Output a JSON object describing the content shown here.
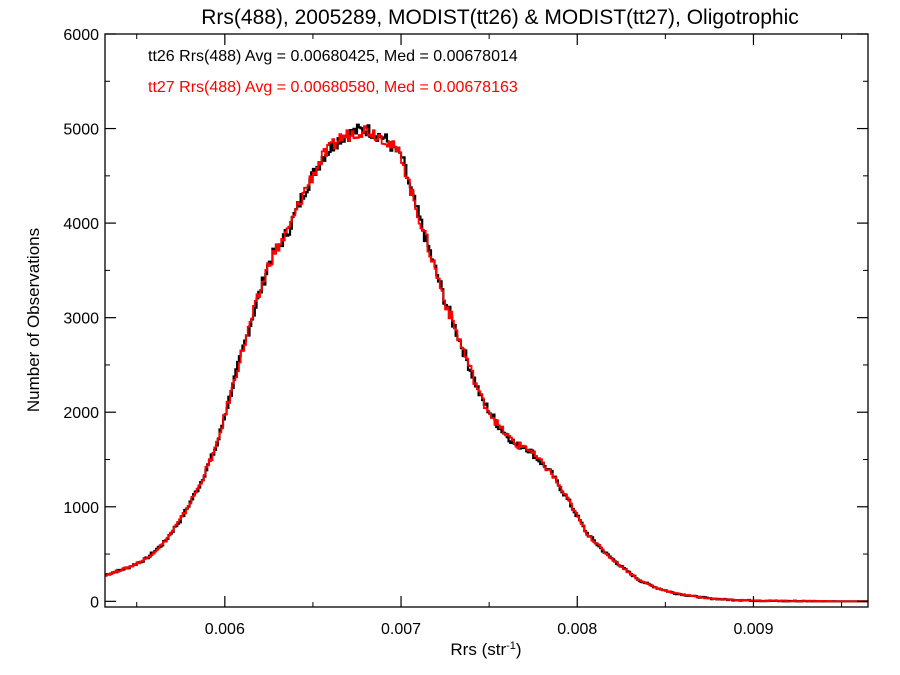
{
  "chart_data": {
    "type": "line",
    "title": "Rrs(488), 2005289, MODIST(tt26) & MODIST(tt27), Oligotrophic",
    "xlabel": "Rrs (str",
    "xlabel_sup": "-1",
    "xlabel_end": ")",
    "ylabel": "Number of Observations",
    "xlim": [
      0.00532,
      0.00965
    ],
    "ylim": [
      -60,
      6000
    ],
    "x_ticks": [
      0.006,
      0.007,
      0.008,
      0.009
    ],
    "x_tick_labels": [
      "0.006",
      "0.007",
      "0.008",
      "0.009"
    ],
    "y_ticks": [
      0,
      1000,
      2000,
      3000,
      4000,
      5000,
      6000
    ],
    "y_tick_labels": [
      "0",
      "1000",
      "2000",
      "3000",
      "4000",
      "5000",
      "6000"
    ],
    "grid": false,
    "step": "histogram",
    "annotations": [
      {
        "text": "tt26 Rrs(488) Avg = 0.00680425, Med = 0.00678014",
        "color": "#000000"
      },
      {
        "text": "tt27 Rrs(488) Avg = 0.00680580, Med = 0.00678163",
        "color": "#ff0000"
      }
    ],
    "series": [
      {
        "color": "#000000",
        "x": [
          0.00532,
          0.00545,
          0.00555,
          0.00565,
          0.00575,
          0.00585,
          0.00595,
          0.00605,
          0.00615,
          0.00625,
          0.00635,
          0.00645,
          0.00655,
          0.00665,
          0.00675,
          0.0068,
          0.0069,
          0.007,
          0.00705,
          0.00715,
          0.00725,
          0.00735,
          0.00745,
          0.00755,
          0.00765,
          0.0077,
          0.00775,
          0.00785,
          0.00795,
          0.00805,
          0.00815,
          0.00825,
          0.00835,
          0.00845,
          0.00855,
          0.00865,
          0.00875,
          0.00885,
          0.00895,
          0.00905,
          0.00915,
          0.00925,
          0.00935,
          0.00945,
          0.00955,
          0.00965
        ],
        "y": [
          280,
          360,
          450,
          620,
          880,
          1220,
          1650,
          2350,
          3000,
          3600,
          3900,
          4350,
          4700,
          4900,
          4980,
          4990,
          4900,
          4700,
          4350,
          3750,
          3150,
          2650,
          2150,
          1850,
          1650,
          1640,
          1550,
          1350,
          1050,
          720,
          520,
          360,
          220,
          140,
          85,
          55,
          30,
          18,
          10,
          6,
          3,
          2,
          1,
          0,
          0,
          0
        ]
      },
      {
        "color": "#ff0000",
        "x": [
          0.00532,
          0.00545,
          0.00555,
          0.00565,
          0.00575,
          0.00585,
          0.00595,
          0.00605,
          0.00615,
          0.00625,
          0.00635,
          0.00645,
          0.00655,
          0.00665,
          0.00675,
          0.0068,
          0.0069,
          0.007,
          0.00705,
          0.00715,
          0.00725,
          0.00735,
          0.00745,
          0.00755,
          0.00765,
          0.0077,
          0.00775,
          0.00785,
          0.00795,
          0.00805,
          0.00815,
          0.00825,
          0.00835,
          0.00845,
          0.00855,
          0.00865,
          0.00875,
          0.00885,
          0.00895,
          0.00905,
          0.00915,
          0.00925,
          0.00935,
          0.00945,
          0.00955,
          0.00965
        ],
        "y": [
          280,
          360,
          450,
          620,
          880,
          1220,
          1650,
          2350,
          3000,
          3600,
          3900,
          4350,
          4700,
          4900,
          4970,
          4990,
          4900,
          4700,
          4350,
          3750,
          3150,
          2650,
          2150,
          1850,
          1650,
          1640,
          1550,
          1350,
          1050,
          720,
          520,
          360,
          220,
          140,
          85,
          55,
          30,
          18,
          10,
          6,
          3,
          2,
          1,
          0,
          0,
          0
        ]
      }
    ]
  }
}
